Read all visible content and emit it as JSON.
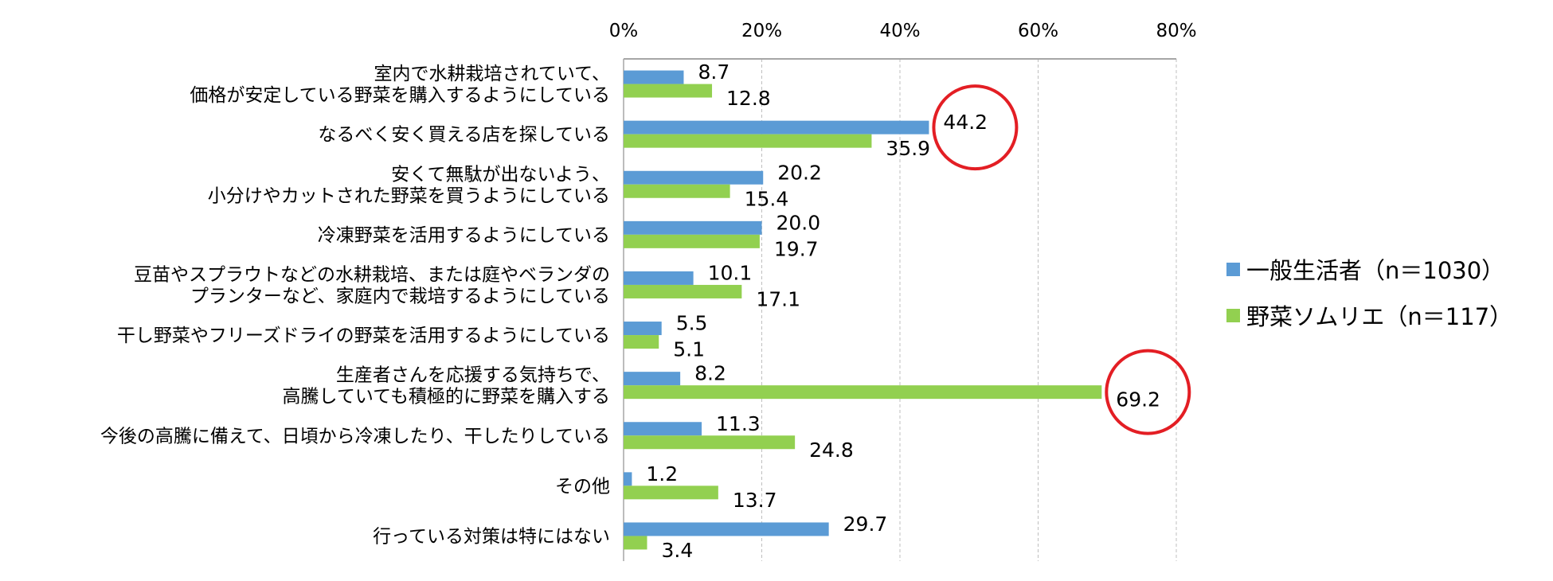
{
  "chart_data": {
    "type": "bar",
    "orientation": "horizontal",
    "xlim": [
      0,
      80
    ],
    "x_ticks": [
      "0%",
      "20%",
      "40%",
      "60%",
      "80%"
    ],
    "grid": true,
    "legend_position": "right",
    "categories": [
      [
        "室内で水耕栽培されていて、",
        "価格が安定している野菜を購入するようにしている"
      ],
      [
        "なるべく安く買える店を探している"
      ],
      [
        "安くて無駄が出ないよう、",
        "小分けやカットされた野菜を買うようにしている"
      ],
      [
        "冷凍野菜を活用するようにしている"
      ],
      [
        "豆苗やスプラウトなどの水耕栽培、または庭やベランダの",
        "プランターなど、家庭内で栽培するようにしている"
      ],
      [
        "干し野菜やフリーズドライの野菜を活用するようにしている"
      ],
      [
        "生産者さんを応援する気持ちで、",
        "高騰していても積極的に野菜を購入する"
      ],
      [
        "今後の高騰に備えて、日頃から冷凍したり、干したりしている"
      ],
      [
        "その他"
      ],
      [
        "行っている対策は特にはない"
      ]
    ],
    "series": [
      {
        "name": "一般生活者（n＝1030）",
        "color": "#5b9bd5",
        "values": [
          8.7,
          44.2,
          20.2,
          20.0,
          10.1,
          5.5,
          8.2,
          11.3,
          1.2,
          29.7
        ],
        "labels": [
          "8.7",
          "44.2",
          "20.2",
          "20.0",
          "10.1",
          "5.5",
          "8.2",
          "11.3",
          "1.2",
          "29.7"
        ]
      },
      {
        "name": "野菜ソムリエ（n＝117）",
        "color": "#92d050",
        "values": [
          12.8,
          35.9,
          15.4,
          19.7,
          17.1,
          5.1,
          69.2,
          24.8,
          13.7,
          3.4
        ],
        "labels": [
          "12.8",
          "35.9",
          "15.4",
          "19.7",
          "17.1",
          "5.1",
          "69.2",
          "24.8",
          "13.7",
          "3.4"
        ]
      }
    ],
    "highlights": [
      {
        "category_index": 1,
        "series_index": 0,
        "color": "#e31e24"
      },
      {
        "category_index": 6,
        "series_index": 1,
        "color": "#e31e24"
      }
    ],
    "colors": {
      "grid": "#bfbfbf",
      "axis": "#a6a6a6"
    }
  }
}
